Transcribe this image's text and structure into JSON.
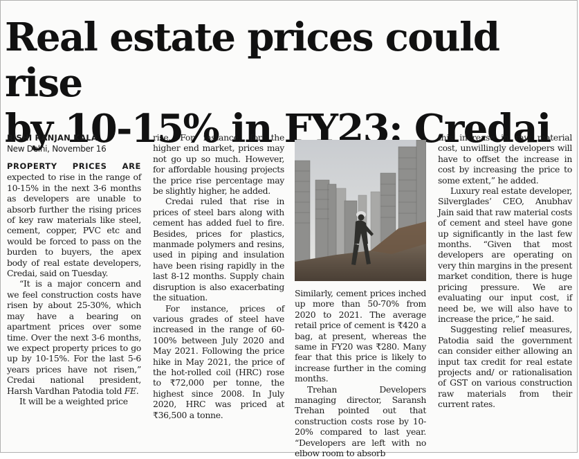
{
  "article": {
    "headline_line1": "Real estate prices could rise",
    "headline_line2": "by 10-15% in FY23: Credai",
    "byline": "RISHI RANJAN KALA",
    "dateline": "New Delhi, November 16",
    "lead_caps": "PROPERTY PRICES ARE",
    "col1_p1": "expected to rise in the range of 10-15% in the next 3-6 months as developers are unable to absorb further the rising prices of key raw materials like steel, cement, copper, PVC etc and would be forced to pass on the burden to buyers, the apex body of real estate developers, Credai, said on Tuesday.",
    "col1_p2_a": "“It is a major concern and we feel construction costs have risen by about 25-30%, which may have a bearing on apartment prices over some time. Over the next 3-6 months, we expect property prices to go up by 10-15%. For the last 5-6 years prices have not risen,” Credai national president, Harsh Vardhan Patodia told ",
    "col1_p2_fe": "FE",
    "col1_p2_end": ".",
    "col1_p3": "It will be a weighted price",
    "col2_p1": "rise. For instance, for the higher end market, prices may not go up so much. However, for affordable housing projects the price rise percentage may be slightly higher, he added.",
    "col2_p2": "Credai ruled that rise in prices of steel bars along with cement has added fuel to fire. Besides, prices for plastics, manmade polymers and resins, used in piping and insulation have been rising rapidly in the last 8-12 months. Supply chain disruption is also exacerbating the situation.",
    "col2_p3": "For instance, prices of various grades of steel have increased in the range of 60-100% between July 2020 and May 2021. Following the price hike in May 2021, the price of the hot-rolled coil (HRC) rose to ₹72,000 per tonne, the highest since 2008. In July 2020, HRC was priced at ₹36,500 a tonne.",
    "col3_p1": "Similarly, cement prices inched up more than 50-70% from 2020 to 2021. The average retail price of cement is ₹420 a bag, at present, whereas the same in FY20 was ₹280. Many fear that this price is likely to increase further in the coming months.",
    "col3_p2": "Trehan Developers managing director, Saransh Trehan pointed out that construction costs rose by 10-20% compared to last year. “Developers are left with no elbow room to absorb",
    "col4_p1": "this increase in raw material cost, unwillingly developers will have to offset the increase in cost by increasing the price to some extent,” he added.",
    "col4_p2": "Luxury real estate developer, Silverglades’ CEO, Anubhav Jain said that raw material costs of cement and steel have gone up significantly in the last few months. “Given that most developers are operating on very thin margins in the present market condition, there is huge pricing pressure. We are evaluating our input cost, if need be, we will also have to increase the price,” he said.",
    "col4_p3": "Suggesting relief measures, Patodia said the government can consider either allowing an input tax credit for real estate projects and/ or rationalisation of GST on various construction raw materials from their current rates."
  }
}
